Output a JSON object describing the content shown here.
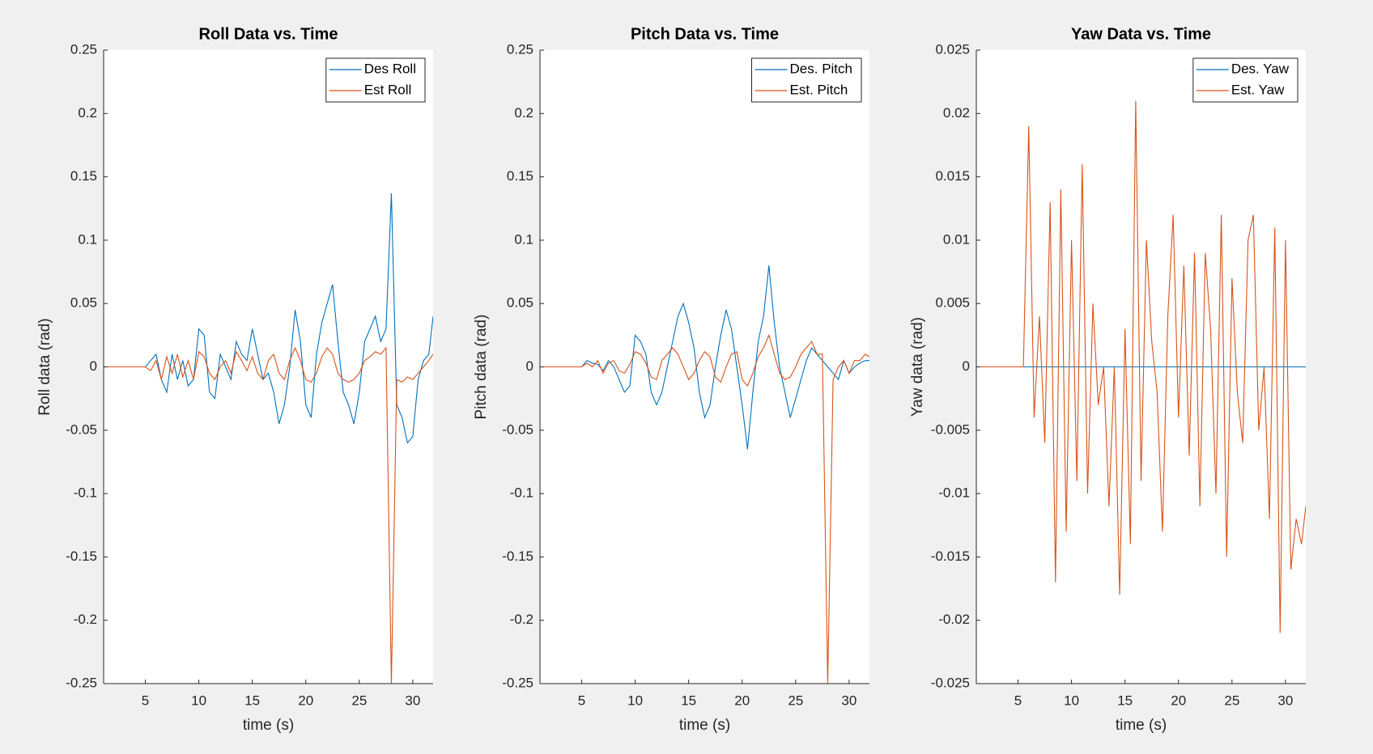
{
  "chart_data": [
    {
      "type": "line",
      "title": "Roll Data vs. Time",
      "xlabel": "time (s)",
      "ylabel": "Roll data (rad)",
      "x": [
        1,
        1.5,
        2,
        2.5,
        3,
        3.5,
        4,
        4.5,
        5,
        5.5,
        6,
        6.5,
        7,
        7.5,
        8,
        8.5,
        9,
        9.5,
        10,
        10.5,
        11,
        11.5,
        12,
        12.5,
        13,
        13.5,
        14,
        14.5,
        15,
        15.5,
        16,
        16.5,
        17,
        17.5,
        18,
        18.5,
        19,
        19.5,
        20,
        20.5,
        21,
        21.5,
        22,
        22.5,
        23,
        23.5,
        24,
        24.5,
        25,
        25.5,
        26,
        26.5,
        27,
        27.5,
        28,
        28.5,
        29,
        29.5,
        30,
        30.5,
        31,
        31.5,
        31.9
      ],
      "series": [
        {
          "name": "Des Roll",
          "color": "#0072BD",
          "values": [
            0,
            0,
            0,
            0,
            0,
            0,
            0,
            0,
            0,
            0.005,
            0.01,
            -0.01,
            -0.02,
            0.01,
            -0.01,
            0.005,
            -0.015,
            -0.01,
            0.03,
            0.025,
            -0.02,
            -0.025,
            0.01,
            0,
            -0.01,
            0.02,
            0.01,
            0.005,
            0.03,
            0.01,
            -0.01,
            -0.005,
            -0.02,
            -0.045,
            -0.03,
            0,
            0.045,
            0.02,
            -0.03,
            -0.04,
            0.01,
            0.035,
            0.05,
            0.065,
            0.02,
            -0.02,
            -0.03,
            -0.045,
            -0.02,
            0.02,
            0.03,
            0.04,
            0.02,
            0.03,
            0.137,
            -0.03,
            -0.04,
            -0.06,
            -0.055,
            -0.01,
            0.005,
            0.01,
            0.04
          ]
        },
        {
          "name": "Est Roll",
          "color": "#D95319",
          "values": [
            0,
            0,
            0,
            0,
            0,
            0,
            0,
            0,
            0,
            -0.003,
            0.005,
            -0.01,
            0.008,
            -0.005,
            0.01,
            -0.008,
            0.005,
            -0.01,
            0.012,
            0.008,
            -0.005,
            -0.01,
            0,
            0.005,
            -0.005,
            0.012,
            0.005,
            -0.003,
            0.008,
            -0.005,
            -0.01,
            0.005,
            0.01,
            -0.005,
            -0.01,
            0.005,
            0.015,
            0.005,
            -0.01,
            -0.012,
            -0.005,
            0.008,
            0.015,
            0.01,
            -0.005,
            -0.01,
            -0.012,
            -0.01,
            -0.005,
            0.005,
            0.008,
            0.012,
            0.01,
            0.015,
            -0.25,
            -0.01,
            -0.012,
            -0.008,
            -0.01,
            -0.005,
            0,
            0.005,
            0.01
          ]
        }
      ],
      "xlim": [
        1.1,
        31.9
      ],
      "ylim": [
        -0.25,
        0.25
      ],
      "xticks": [
        5,
        10,
        15,
        20,
        25,
        30
      ],
      "yticks": [
        0.25,
        0.2,
        0.15,
        0.1,
        0.05,
        0,
        -0.05,
        -0.1,
        -0.15,
        -0.2,
        -0.25
      ],
      "legend": "upper right"
    },
    {
      "type": "line",
      "title": "Pitch Data vs. Time",
      "xlabel": "time (s)",
      "ylabel": "Pitch data (rad)",
      "x": [
        1,
        1.5,
        2,
        2.5,
        3,
        3.5,
        4,
        4.5,
        5,
        5.5,
        6,
        6.5,
        7,
        7.5,
        8,
        8.5,
        9,
        9.5,
        10,
        10.5,
        11,
        11.5,
        12,
        12.5,
        13,
        13.5,
        14,
        14.5,
        15,
        15.5,
        16,
        16.5,
        17,
        17.5,
        18,
        18.5,
        19,
        19.5,
        20,
        20.5,
        21,
        21.5,
        22,
        22.5,
        23,
        23.5,
        24,
        24.5,
        25,
        25.5,
        26,
        26.5,
        27,
        27.5,
        28,
        28.5,
        29,
        29.5,
        30,
        30.5,
        31,
        31.5,
        31.9
      ],
      "series": [
        {
          "name": "Des. Pitch",
          "color": "#0072BD",
          "values": [
            0,
            0,
            0,
            0,
            0,
            0,
            0,
            0,
            0,
            0.005,
            0.003,
            0.002,
            -0.003,
            0.005,
            0,
            -0.01,
            -0.02,
            -0.015,
            0.025,
            0.02,
            0.01,
            -0.02,
            -0.03,
            -0.02,
            0,
            0.02,
            0.04,
            0.05,
            0.035,
            0.015,
            -0.02,
            -0.04,
            -0.03,
            0,
            0.025,
            0.045,
            0.03,
            0,
            -0.03,
            -0.065,
            -0.02,
            0.02,
            0.04,
            0.08,
            0.035,
            0,
            -0.02,
            -0.04,
            -0.025,
            -0.01,
            0.005,
            0.015,
            0.01,
            0.005,
            0,
            -0.005,
            -0.01,
            0.005,
            -0.005,
            0,
            0.003,
            0.005,
            0.005
          ]
        },
        {
          "name": "Est. Pitch",
          "color": "#D95319",
          "values": [
            0,
            0,
            0,
            0,
            0,
            0,
            0,
            0,
            0,
            0.003,
            0,
            0.005,
            -0.005,
            0.003,
            0.005,
            -0.003,
            -0.005,
            0.002,
            0.012,
            0.01,
            0.003,
            -0.008,
            -0.01,
            0.005,
            0.01,
            0.015,
            0.01,
            0,
            -0.01,
            -0.005,
            0.005,
            0.012,
            0.008,
            -0.008,
            -0.012,
            0,
            0.01,
            0.012,
            -0.01,
            -0.015,
            -0.005,
            0.008,
            0.015,
            0.025,
            0.01,
            -0.005,
            -0.01,
            -0.008,
            0,
            0.01,
            0.015,
            0.02,
            0.01,
            0.01,
            -0.25,
            -0.01,
            0,
            0.005,
            -0.005,
            0.005,
            0.005,
            0.01,
            0.008
          ]
        }
      ],
      "xlim": [
        1.1,
        31.9
      ],
      "ylim": [
        -0.25,
        0.25
      ],
      "xticks": [
        5,
        10,
        15,
        20,
        25,
        30
      ],
      "yticks": [
        0.25,
        0.2,
        0.15,
        0.1,
        0.05,
        0,
        -0.05,
        -0.1,
        -0.15,
        -0.2,
        -0.25
      ],
      "legend": "upper right"
    },
    {
      "type": "line",
      "title": "Yaw Data vs. Time",
      "xlabel": "time (s)",
      "ylabel": "Yaw data (rad)",
      "x": [
        1,
        1.5,
        2,
        2.5,
        3,
        3.5,
        4,
        4.5,
        5,
        5.5,
        6,
        6.5,
        7,
        7.5,
        8,
        8.5,
        9,
        9.5,
        10,
        10.5,
        11,
        11.5,
        12,
        12.5,
        13,
        13.5,
        14,
        14.5,
        15,
        15.5,
        16,
        16.5,
        17,
        17.5,
        18,
        18.5,
        19,
        19.5,
        20,
        20.5,
        21,
        21.5,
        22,
        22.5,
        23,
        23.5,
        24,
        24.5,
        25,
        25.5,
        26,
        26.5,
        27,
        27.5,
        28,
        28.5,
        29,
        29.5,
        30,
        30.5,
        31,
        31.5,
        31.9
      ],
      "series": [
        {
          "name": "Des. Yaw",
          "color": "#0072BD",
          "values": [
            0,
            0,
            0,
            0,
            0,
            0,
            0,
            0,
            0,
            0,
            0,
            0,
            0,
            0,
            0,
            0,
            0,
            0,
            0,
            0,
            0,
            0,
            0,
            0,
            0,
            0,
            0,
            0,
            0,
            0,
            0,
            0,
            0,
            0,
            0,
            0,
            0,
            0,
            0,
            0,
            0,
            0,
            0,
            0,
            0,
            0,
            0,
            0,
            0,
            0,
            0,
            0,
            0,
            0,
            0,
            0,
            0,
            0,
            0,
            0,
            0,
            0,
            0
          ]
        },
        {
          "name": "Est. Yaw",
          "color": "#D95319",
          "values": [
            0,
            0,
            0,
            0,
            0,
            0,
            0,
            0,
            0,
            0,
            0.019,
            -0.004,
            0.004,
            -0.006,
            0.013,
            -0.017,
            0.014,
            -0.013,
            0.01,
            -0.009,
            0.016,
            -0.01,
            0.005,
            -0.003,
            0,
            -0.011,
            0,
            -0.018,
            0.003,
            -0.014,
            0.021,
            -0.009,
            0.01,
            0.002,
            -0.002,
            -0.013,
            0.004,
            0.012,
            -0.004,
            0.008,
            -0.007,
            0.009,
            -0.011,
            0.009,
            0.003,
            -0.01,
            0.012,
            -0.015,
            0.007,
            -0.002,
            -0.006,
            0.01,
            0.012,
            -0.005,
            0,
            -0.012,
            0.011,
            -0.021,
            0.01,
            -0.016,
            -0.012,
            -0.014,
            -0.011
          ]
        }
      ],
      "xlim": [
        1.1,
        31.9
      ],
      "ylim": [
        -0.025,
        0.025
      ],
      "xticks": [
        5,
        10,
        15,
        20,
        25,
        30
      ],
      "yticks": [
        0.025,
        0.02,
        0.015,
        0.01,
        0.005,
        0,
        -0.005,
        -0.01,
        -0.015,
        -0.02,
        -0.025
      ],
      "legend": "upper right"
    }
  ]
}
